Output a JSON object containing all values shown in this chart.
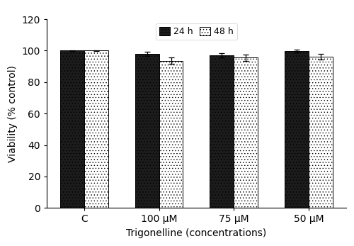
{
  "categories": [
    "C",
    "100 µM",
    "75 µM",
    "50 µM"
  ],
  "values_24h": [
    100.0,
    98.0,
    97.0,
    99.8
  ],
  "values_48h": [
    100.0,
    93.5,
    95.5,
    96.0
  ],
  "errors_24h": [
    0.3,
    1.5,
    1.2,
    0.8
  ],
  "errors_48h": [
    0.3,
    2.0,
    2.0,
    1.8
  ],
  "ylabel": "Viability (% control)",
  "xlabel": "Trigonelline (concentrations)",
  "ylim": [
    0,
    120
  ],
  "yticks": [
    0,
    20,
    40,
    60,
    80,
    100,
    120
  ],
  "legend_labels": [
    "24 h",
    "48 h"
  ],
  "bar_width": 0.32,
  "color_24h": "#1c1c1c",
  "color_48h": "#ffffff",
  "hatch_24h": "....",
  "hatch_48h": "....",
  "edgecolor": "#000000",
  "background_color": "#ffffff"
}
